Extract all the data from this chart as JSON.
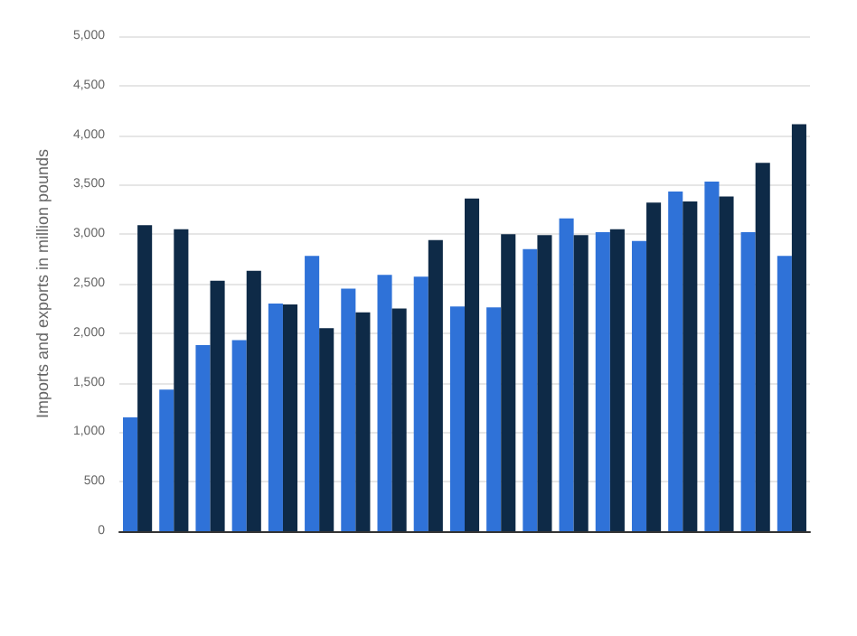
{
  "chart_data": {
    "type": "bar",
    "ylabel": "Imports and exports in million pounds",
    "categories": [
      null,
      null,
      null,
      null,
      null,
      null,
      null,
      null,
      null,
      null,
      null,
      null,
      null,
      null,
      null,
      null,
      null,
      null,
      null
    ],
    "series": [
      {
        "color": "#2f72d8",
        "values": [
          1150,
          1430,
          1880,
          1930,
          2300,
          2780,
          2450,
          2590,
          2570,
          2270,
          2260,
          2850,
          3160,
          3020,
          2930,
          3430,
          3530,
          3020,
          2780
        ]
      },
      {
        "color": "#0e2a47",
        "values": [
          3090,
          3050,
          2530,
          2630,
          2290,
          2050,
          2210,
          2250,
          2940,
          3360,
          3000,
          2990,
          2990,
          3050,
          3320,
          3330,
          3380,
          3720,
          4110
        ]
      }
    ],
    "ylim": [
      0,
      5000
    ],
    "yticks": [
      0,
      500,
      {
        "value": 1000,
        "label": "1,000"
      },
      {
        "value": 1500,
        "label": "1,500"
      },
      {
        "value": 2000,
        "label": "2,000"
      },
      {
        "value": 2500,
        "label": "2,500"
      },
      {
        "value": 3000,
        "label": "3,000"
      },
      {
        "value": 3500,
        "label": "3,500"
      },
      {
        "value": 4000,
        "label": "4,000"
      },
      {
        "value": 4500,
        "label": "4,500"
      },
      {
        "value": 5000,
        "label": "5,000"
      }
    ],
    "grid": "y"
  }
}
